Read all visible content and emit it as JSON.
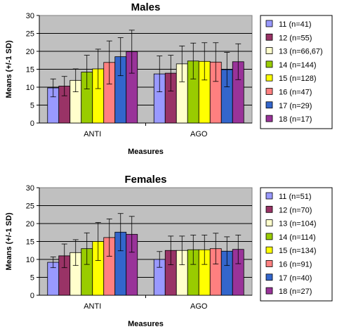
{
  "chart_data": [
    {
      "type": "bar",
      "title": "Males",
      "xlabel": "Measures",
      "ylabel": "Means (+/-1 SD)",
      "ylim": [
        0,
        30
      ],
      "yticks": [
        0,
        5,
        10,
        15,
        20,
        25,
        30
      ],
      "categories": [
        "ANTI",
        "AGO"
      ],
      "grid": true,
      "legend_position": "right",
      "series": [
        {
          "name": "11 (n=41)",
          "color": "#9999ff",
          "values": [
            9.8,
            13.7
          ],
          "sd": [
            2.5,
            5.0
          ]
        },
        {
          "name": "12 (n=55)",
          "color": "#993366",
          "values": [
            10.3,
            13.9
          ],
          "sd": [
            2.7,
            5.0
          ]
        },
        {
          "name": "13 (n=66,67)",
          "color": "#ffffcc",
          "values": [
            11.9,
            16.5
          ],
          "sd": [
            3.2,
            5.0
          ]
        },
        {
          "name": "14 (n=144)",
          "color": "#99cc00",
          "values": [
            14.2,
            17.3
          ],
          "sd": [
            4.7,
            5.0
          ]
        },
        {
          "name": "15 (n=128)",
          "color": "#ffff00",
          "values": [
            15.1,
            17.2
          ],
          "sd": [
            5.5,
            5.2
          ]
        },
        {
          "name": "16 (n=47)",
          "color": "#ff8080",
          "values": [
            16.9,
            17.0
          ],
          "sd": [
            6.0,
            5.4
          ]
        },
        {
          "name": "17 (n=29)",
          "color": "#3366cc",
          "values": [
            18.5,
            14.9
          ],
          "sd": [
            5.3,
            4.8
          ]
        },
        {
          "name": "18 (n=17)",
          "color": "#993399",
          "values": [
            19.9,
            17.1
          ],
          "sd": [
            6.0,
            5.0
          ]
        }
      ]
    },
    {
      "type": "bar",
      "title": "Females",
      "xlabel": "Measures",
      "ylabel": "Means (+/-1 SD)",
      "ylim": [
        0,
        30
      ],
      "yticks": [
        0,
        5,
        10,
        15,
        20,
        25,
        30
      ],
      "categories": [
        "ANTI",
        "AGO"
      ],
      "grid": true,
      "legend_position": "right",
      "series": [
        {
          "name": "11 (n=51)",
          "color": "#9999ff",
          "values": [
            9.2,
            10.0
          ],
          "sd": [
            1.5,
            2.2
          ]
        },
        {
          "name": "12 (n=70)",
          "color": "#993366",
          "values": [
            11.0,
            12.5
          ],
          "sd": [
            3.3,
            4.0
          ]
        },
        {
          "name": "13 (n=104)",
          "color": "#ffffcc",
          "values": [
            11.9,
            12.5
          ],
          "sd": [
            3.6,
            4.0
          ]
        },
        {
          "name": "14 (n=114)",
          "color": "#99cc00",
          "values": [
            13.0,
            12.7
          ],
          "sd": [
            4.4,
            4.1
          ]
        },
        {
          "name": "15 (n=134)",
          "color": "#ffff00",
          "values": [
            15.0,
            12.7
          ],
          "sd": [
            5.3,
            4.1
          ]
        },
        {
          "name": "16 (n=91)",
          "color": "#ff8080",
          "values": [
            16.1,
            13.0
          ],
          "sd": [
            5.2,
            4.3
          ]
        },
        {
          "name": "17 (n=40)",
          "color": "#3366cc",
          "values": [
            17.6,
            12.3
          ],
          "sd": [
            5.2,
            4.0
          ]
        },
        {
          "name": "18 (n=27)",
          "color": "#993399",
          "values": [
            17.0,
            12.8
          ],
          "sd": [
            5.0,
            4.0
          ]
        }
      ]
    }
  ]
}
